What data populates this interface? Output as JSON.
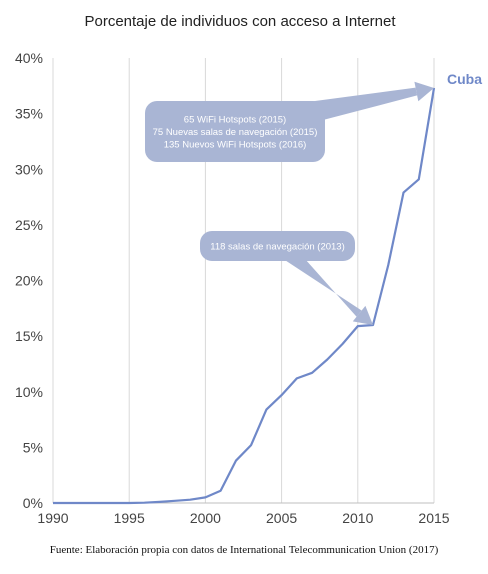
{
  "chart_data": {
    "type": "line",
    "title": "Porcentaje de individuos con acceso a Internet",
    "xlabel": "",
    "ylabel": "",
    "xlim": [
      1990,
      2015
    ],
    "ylim": [
      0,
      40
    ],
    "grid": "vertical",
    "x_ticks": [
      "1990",
      "1995",
      "2000",
      "2005",
      "2010",
      "2015"
    ],
    "y_ticks": [
      "0%",
      "5%",
      "10%",
      "15%",
      "20%",
      "25%",
      "30%",
      "35%",
      "40%"
    ],
    "series": [
      {
        "name": "Cuba",
        "color": "#6f88c8",
        "x": [
          1990,
          1991,
          1992,
          1993,
          1994,
          1995,
          1996,
          1997,
          1998,
          1999,
          2000,
          2001,
          2002,
          2003,
          2004,
          2005,
          2006,
          2007,
          2008,
          2009,
          2010,
          2011,
          2012,
          2013,
          2014,
          2015
        ],
        "y": [
          0,
          0,
          0,
          0,
          0,
          0,
          0.03,
          0.1,
          0.2,
          0.3,
          0.5,
          1.1,
          3.8,
          5.2,
          8.4,
          9.7,
          11.2,
          11.7,
          12.9,
          14.3,
          15.9,
          16.0,
          21.4,
          27.9,
          29.1,
          37.3
        ]
      }
    ],
    "annotations": [
      {
        "lines": [
          "65 WiFi Hotspots (2015)",
          "75 Nuevas salas de navegación (2015)",
          "135 Nuevos WiFi Hotspots (2016)"
        ],
        "target_x": 2015,
        "target_y": 37.3
      },
      {
        "lines": [
          "118 salas de navegación (2013)"
        ],
        "target_x": 2011,
        "target_y": 16.0
      }
    ],
    "colors": {
      "line": "#6f88c8",
      "callout": "#a9b5d4",
      "grid": "#d9d9d9"
    }
  },
  "source_note": "Fuente: Elaboración propia con datos de International Telecommunication Union (2017)"
}
